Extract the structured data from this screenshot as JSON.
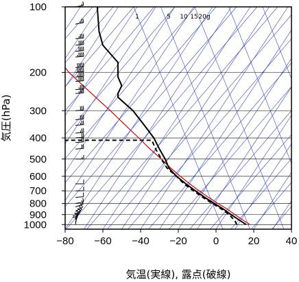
{
  "chart_data": {
    "type": "line",
    "title": "",
    "xlabel": "気温(実線), 露点(破線)",
    "ylabel": "気圧(hPa)",
    "xlim": [
      -80,
      40
    ],
    "ylim": [
      1050,
      100
    ],
    "y_scale": "log",
    "x_ticks": [
      "−80",
      "−60",
      "−40",
      "−20",
      "0",
      "20",
      "40"
    ],
    "x_tick_values": [
      -80,
      -60,
      -40,
      -20,
      0,
      20,
      40
    ],
    "y_ticks": [
      "100",
      "200",
      "300",
      "400",
      "500",
      "600",
      "700",
      "800",
      "900",
      "1000"
    ],
    "y_tick_values": [
      100,
      200,
      300,
      400,
      500,
      600,
      700,
      800,
      900,
      1000
    ],
    "grid": true,
    "mixing_ratio_labels": [
      "1",
      "5",
      "10",
      "15",
      "20g"
    ],
    "mixing_ratio_values": [
      1,
      5,
      10,
      15,
      20
    ],
    "colors": {
      "temperature": "#000000",
      "dewpoint": "#000000",
      "parcel": "#cc0000",
      "guide_lines": "#3344cc",
      "grid": "#000000",
      "wind_barbs": "#000000"
    },
    "series": [
      {
        "name": "気温",
        "style": "solid",
        "points": [
          [
            16,
            1000
          ],
          [
            12,
            950
          ],
          [
            8,
            900
          ],
          [
            4,
            850
          ],
          [
            -1,
            800
          ],
          [
            -6,
            750
          ],
          [
            -11,
            700
          ],
          [
            -16,
            650
          ],
          [
            -21,
            600
          ],
          [
            -25,
            550
          ],
          [
            -27,
            500
          ],
          [
            -30,
            450
          ],
          [
            -33,
            400
          ],
          [
            -38,
            350
          ],
          [
            -44,
            300
          ],
          [
            -52,
            260
          ],
          [
            -52,
            250
          ],
          [
            -50,
            230
          ],
          [
            -52,
            210
          ],
          [
            -52,
            180
          ],
          [
            -60,
            150
          ],
          [
            -62,
            130
          ],
          [
            -63,
            100
          ]
        ]
      },
      {
        "name": "露点",
        "style": "dashed",
        "points": [
          [
            11,
            1000
          ],
          [
            10,
            960
          ],
          [
            7,
            900
          ],
          [
            3,
            850
          ],
          [
            -2,
            800
          ],
          [
            -7,
            750
          ],
          [
            -12,
            700
          ],
          [
            -17,
            650
          ],
          [
            -21,
            600
          ],
          [
            -26,
            550
          ],
          [
            -29,
            500
          ],
          [
            -32,
            450
          ],
          [
            -34,
            410
          ],
          [
            -80,
            410
          ]
        ]
      },
      {
        "style": "solid",
        "points": [
          [
            18,
            1000
          ],
          [
            14,
            950
          ],
          [
            10,
            900
          ],
          [
            6,
            850
          ],
          [
            1,
            800
          ],
          [
            -4,
            750
          ],
          [
            -9,
            700
          ],
          [
            -14,
            650
          ],
          [
            -19,
            600
          ],
          [
            -24,
            550
          ],
          [
            -29,
            500
          ],
          [
            -35,
            450
          ],
          [
            -41,
            400
          ],
          [
            -48,
            350
          ],
          [
            -56,
            300
          ],
          [
            -66,
            250
          ],
          [
            -78,
            200
          ],
          [
            -80,
            190
          ]
        ]
      }
    ],
    "wind_barbs": [
      {
        "p": 100,
        "dir": 260,
        "speed": 15
      },
      {
        "p": 120,
        "dir": 260,
        "speed": 25
      },
      {
        "p": 140,
        "dir": 265,
        "speed": 35
      },
      {
        "p": 150,
        "dir": 265,
        "speed": 40
      },
      {
        "p": 160,
        "dir": 265,
        "speed": 40
      },
      {
        "p": 170,
        "dir": 265,
        "speed": 45
      },
      {
        "p": 190,
        "dir": 265,
        "speed": 50
      },
      {
        "p": 200,
        "dir": 265,
        "speed": 50
      },
      {
        "p": 210,
        "dir": 265,
        "speed": 45
      },
      {
        "p": 220,
        "dir": 265,
        "speed": 40
      },
      {
        "p": 240,
        "dir": 265,
        "speed": 35
      },
      {
        "p": 250,
        "dir": 265,
        "speed": 35
      },
      {
        "p": 300,
        "dir": 265,
        "speed": 30
      },
      {
        "p": 330,
        "dir": 265,
        "speed": 30
      },
      {
        "p": 350,
        "dir": 265,
        "speed": 25
      },
      {
        "p": 380,
        "dir": 265,
        "speed": 25
      },
      {
        "p": 400,
        "dir": 265,
        "speed": 20
      },
      {
        "p": 420,
        "dir": 265,
        "speed": 20
      },
      {
        "p": 450,
        "dir": 265,
        "speed": 20
      },
      {
        "p": 500,
        "dir": 270,
        "speed": 15
      },
      {
        "p": 650,
        "dir": 270,
        "speed": 10
      },
      {
        "p": 700,
        "dir": 270,
        "speed": 10
      },
      {
        "p": 750,
        "dir": 265,
        "speed": 10
      },
      {
        "p": 800,
        "dir": 260,
        "speed": 10
      },
      {
        "p": 830,
        "dir": 250,
        "speed": 10
      },
      {
        "p": 870,
        "dir": 240,
        "speed": 10
      },
      {
        "p": 900,
        "dir": 230,
        "speed": 10
      },
      {
        "p": 925,
        "dir": 220,
        "speed": 10
      },
      {
        "p": 950,
        "dir": 210,
        "speed": 15
      },
      {
        "p": 975,
        "dir": 200,
        "speed": 15
      },
      {
        "p": 1000,
        "dir": 190,
        "speed": 20
      }
    ]
  }
}
